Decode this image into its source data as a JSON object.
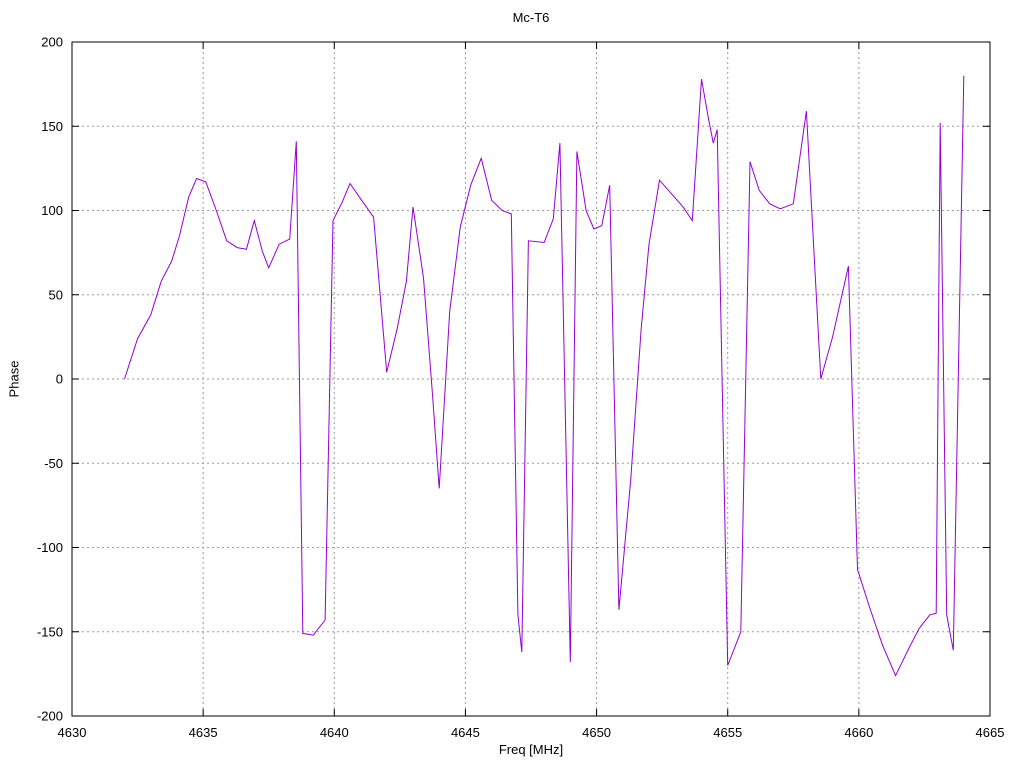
{
  "window": {
    "background": "#ffffff"
  },
  "chart_data": {
    "type": "line",
    "title": "Mc-T6",
    "xlabel": "Freq [MHz]",
    "ylabel": "Phase",
    "xlim": [
      4630,
      4665
    ],
    "ylim": [
      -200,
      200
    ],
    "xticks": [
      4630,
      4635,
      4640,
      4645,
      4650,
      4655,
      4660,
      4665
    ],
    "yticks": [
      -200,
      -150,
      -100,
      -50,
      0,
      50,
      100,
      150,
      200
    ],
    "grid": "dotted",
    "legend": "none",
    "line_color": "#9400d3",
    "series": [
      {
        "name": "Phase",
        "points": [
          [
            4632.0,
            0
          ],
          [
            4632.5,
            24
          ],
          [
            4633.0,
            38
          ],
          [
            4633.4,
            58
          ],
          [
            4633.8,
            70
          ],
          [
            4634.1,
            85
          ],
          [
            4634.45,
            108
          ],
          [
            4634.75,
            119
          ],
          [
            4635.1,
            117
          ],
          [
            4635.5,
            100
          ],
          [
            4635.9,
            82
          ],
          [
            4636.3,
            78
          ],
          [
            4636.65,
            77
          ],
          [
            4636.95,
            94
          ],
          [
            4637.25,
            76
          ],
          [
            4637.5,
            66
          ],
          [
            4637.9,
            80
          ],
          [
            4638.3,
            83
          ],
          [
            4638.55,
            141
          ],
          [
            4638.8,
            -151
          ],
          [
            4639.2,
            -152
          ],
          [
            4639.65,
            -143
          ],
          [
            4639.95,
            94
          ],
          [
            4640.3,
            105
          ],
          [
            4640.6,
            116
          ],
          [
            4641.0,
            107
          ],
          [
            4641.5,
            96
          ],
          [
            4642.0,
            4
          ],
          [
            4642.4,
            30
          ],
          [
            4642.75,
            58
          ],
          [
            4643.0,
            102
          ],
          [
            4643.4,
            60
          ],
          [
            4643.75,
            -10
          ],
          [
            4644.0,
            -65
          ],
          [
            4644.4,
            40
          ],
          [
            4644.8,
            90
          ],
          [
            4645.2,
            115
          ],
          [
            4645.6,
            131
          ],
          [
            4646.0,
            106
          ],
          [
            4646.4,
            100
          ],
          [
            4646.75,
            98
          ],
          [
            4647.0,
            -140
          ],
          [
            4647.15,
            -162
          ],
          [
            4647.4,
            82
          ],
          [
            4648.0,
            81
          ],
          [
            4648.35,
            95
          ],
          [
            4648.6,
            140
          ],
          [
            4649.0,
            -168
          ],
          [
            4649.25,
            135
          ],
          [
            4649.6,
            100
          ],
          [
            4649.9,
            89
          ],
          [
            4650.2,
            91
          ],
          [
            4650.5,
            115
          ],
          [
            4650.85,
            -137
          ],
          [
            4651.3,
            -60
          ],
          [
            4651.7,
            30
          ],
          [
            4652.0,
            80
          ],
          [
            4652.4,
            118
          ],
          [
            4652.85,
            110
          ],
          [
            4653.3,
            102
          ],
          [
            4653.65,
            94
          ],
          [
            4654.0,
            178
          ],
          [
            4654.25,
            156
          ],
          [
            4654.45,
            140
          ],
          [
            4654.6,
            148
          ],
          [
            4655.0,
            -170
          ],
          [
            4655.5,
            -150
          ],
          [
            4655.85,
            129
          ],
          [
            4656.2,
            112
          ],
          [
            4656.6,
            104
          ],
          [
            4657.0,
            101
          ],
          [
            4657.5,
            104
          ],
          [
            4658.0,
            159
          ],
          [
            4658.55,
            0
          ],
          [
            4659.0,
            25
          ],
          [
            4659.6,
            67
          ],
          [
            4659.95,
            -113
          ],
          [
            4660.4,
            -135
          ],
          [
            4660.9,
            -158
          ],
          [
            4661.4,
            -176
          ],
          [
            4661.9,
            -160
          ],
          [
            4662.3,
            -148
          ],
          [
            4662.7,
            -140
          ],
          [
            4662.95,
            -139
          ],
          [
            4663.1,
            152
          ],
          [
            4663.35,
            -140
          ],
          [
            4663.6,
            -161
          ],
          [
            4664.0,
            180
          ]
        ]
      }
    ]
  }
}
